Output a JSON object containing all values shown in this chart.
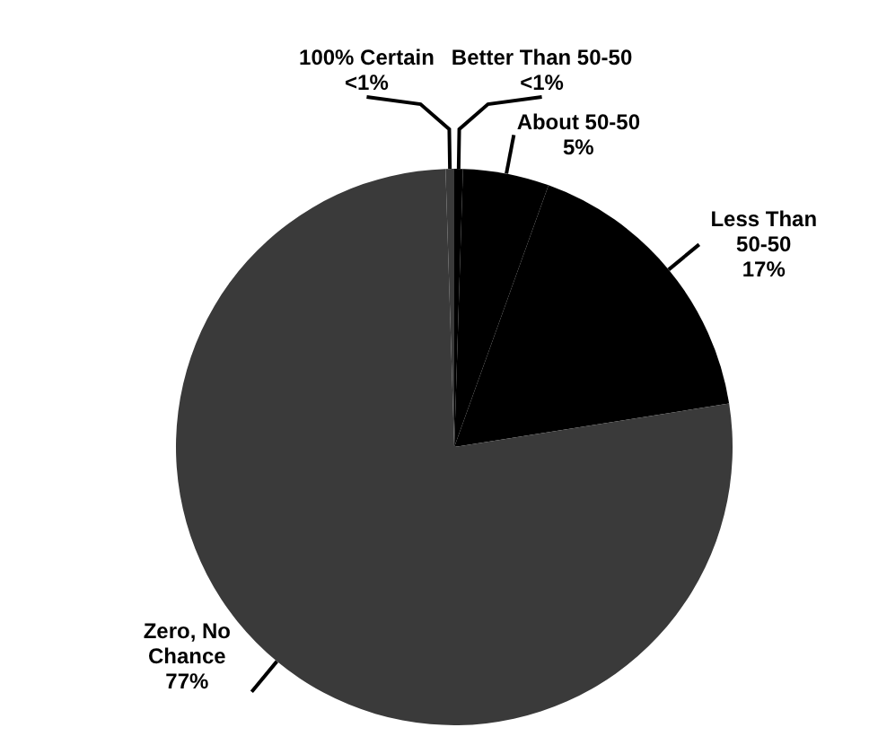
{
  "chart_data": {
    "type": "pie",
    "categories": [
      "Better Than 50-50",
      "About 50-50",
      "Less Than 50-50",
      "Zero, No Chance",
      "100% Certain"
    ],
    "values": [
      0.5,
      5,
      17,
      77,
      0.5
    ],
    "value_labels": [
      "<1%",
      "5%",
      "17%",
      "77%",
      "<1%"
    ],
    "colors": [
      "#000000",
      "#000000",
      "#000000",
      "#3a3a3a",
      "#3a3a3a"
    ],
    "legend": false
  }
}
